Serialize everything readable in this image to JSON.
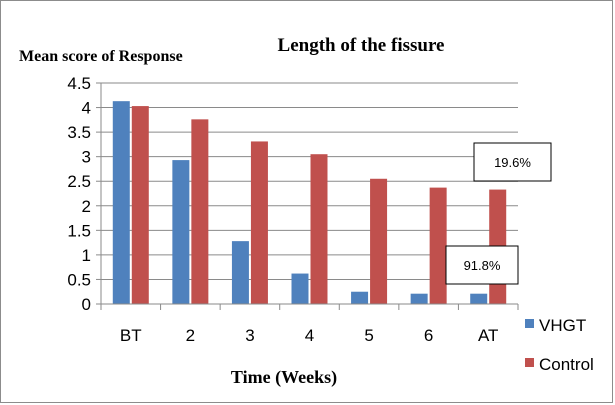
{
  "chart_data": {
    "type": "bar",
    "title": "Length of the fissure",
    "ylabel": "Mean score of Response",
    "xlabel": "Time (Weeks)",
    "categories": [
      "BT",
      "2",
      "3",
      "4",
      "5",
      "6",
      "AT"
    ],
    "ylim": [
      0,
      4.5
    ],
    "yticks": [
      "0",
      "0.5",
      "1",
      "1.5",
      "2",
      "2.5",
      "3",
      "3.5",
      "4",
      "4.5"
    ],
    "grid": true,
    "legend_position": "right",
    "series": [
      {
        "name": "VHGT",
        "color": "#4f81bd",
        "values": [
          4.13,
          2.93,
          1.28,
          0.62,
          0.25,
          0.21,
          0.21
        ]
      },
      {
        "name": "Control",
        "color": "#c0504d",
        "values": [
          4.03,
          3.76,
          3.31,
          3.05,
          2.55,
          2.37,
          2.33
        ]
      }
    ],
    "annotations": [
      {
        "text": "19.6%",
        "series": "Control",
        "category": "AT"
      },
      {
        "text": "91.8%",
        "series": "VHGT",
        "category": "AT"
      }
    ]
  }
}
